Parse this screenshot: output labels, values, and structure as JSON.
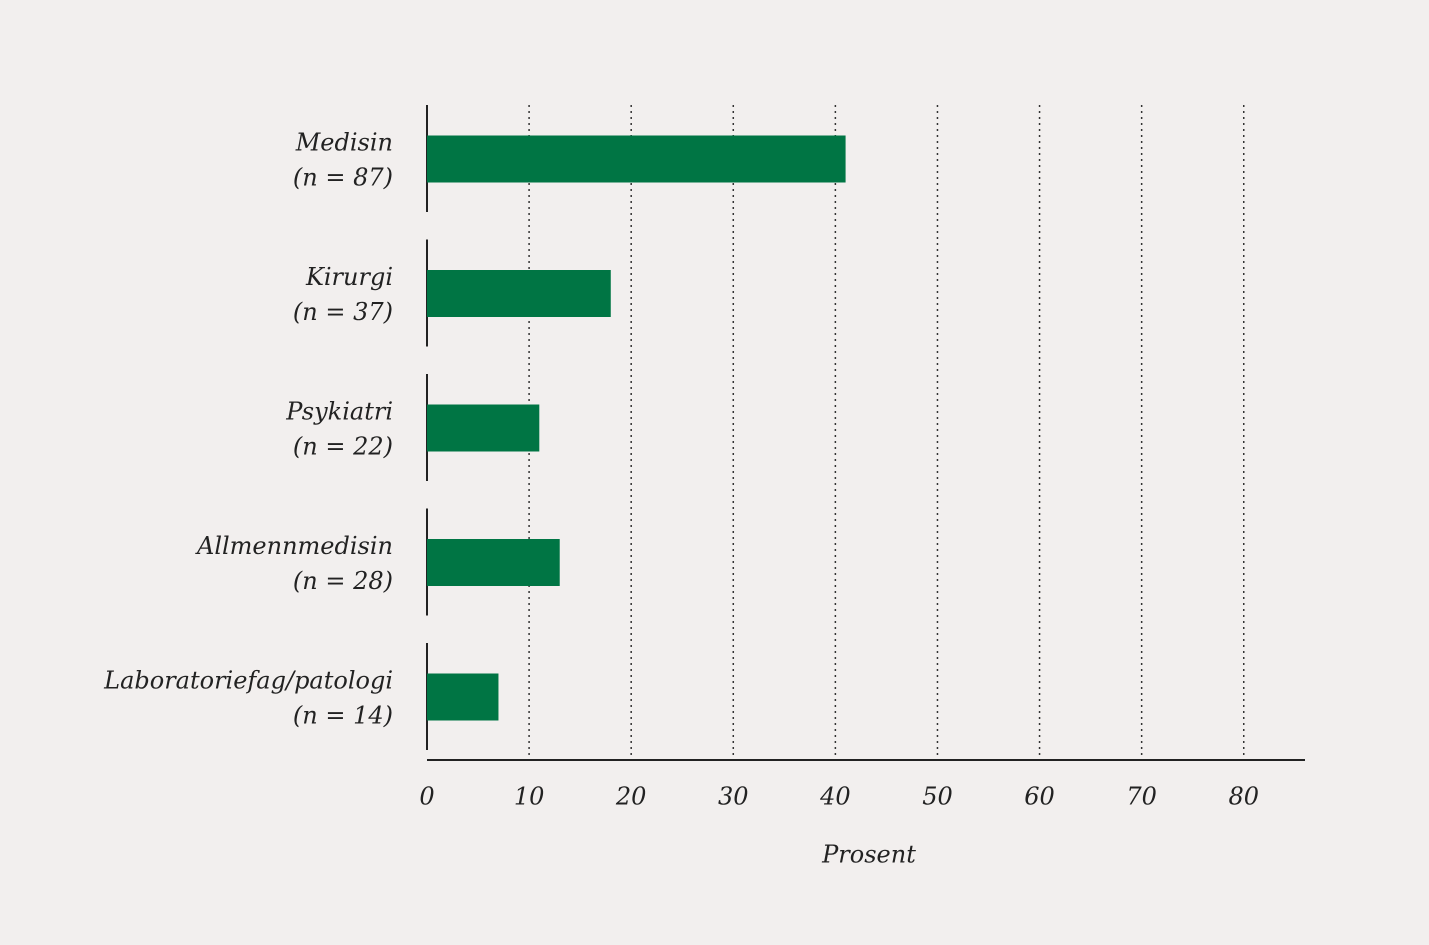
{
  "chart_data": {
    "type": "barh",
    "categories": [
      "Medisin",
      "Kirurgi",
      "Psykiatri",
      "Allmennmedisin",
      "Laboratoriefag/patologi"
    ],
    "category_sublabels": [
      "(n = 87)",
      "(n = 37)",
      "(n = 22)",
      "(n = 28)",
      "(n = 14)"
    ],
    "values": [
      41,
      18,
      11,
      13,
      7
    ],
    "color": "#007544",
    "xlabel": "Prosent",
    "xlim": [
      0,
      86
    ],
    "xticks": [
      0,
      10,
      20,
      30,
      40,
      50,
      60,
      70,
      80
    ],
    "grid": true
  }
}
